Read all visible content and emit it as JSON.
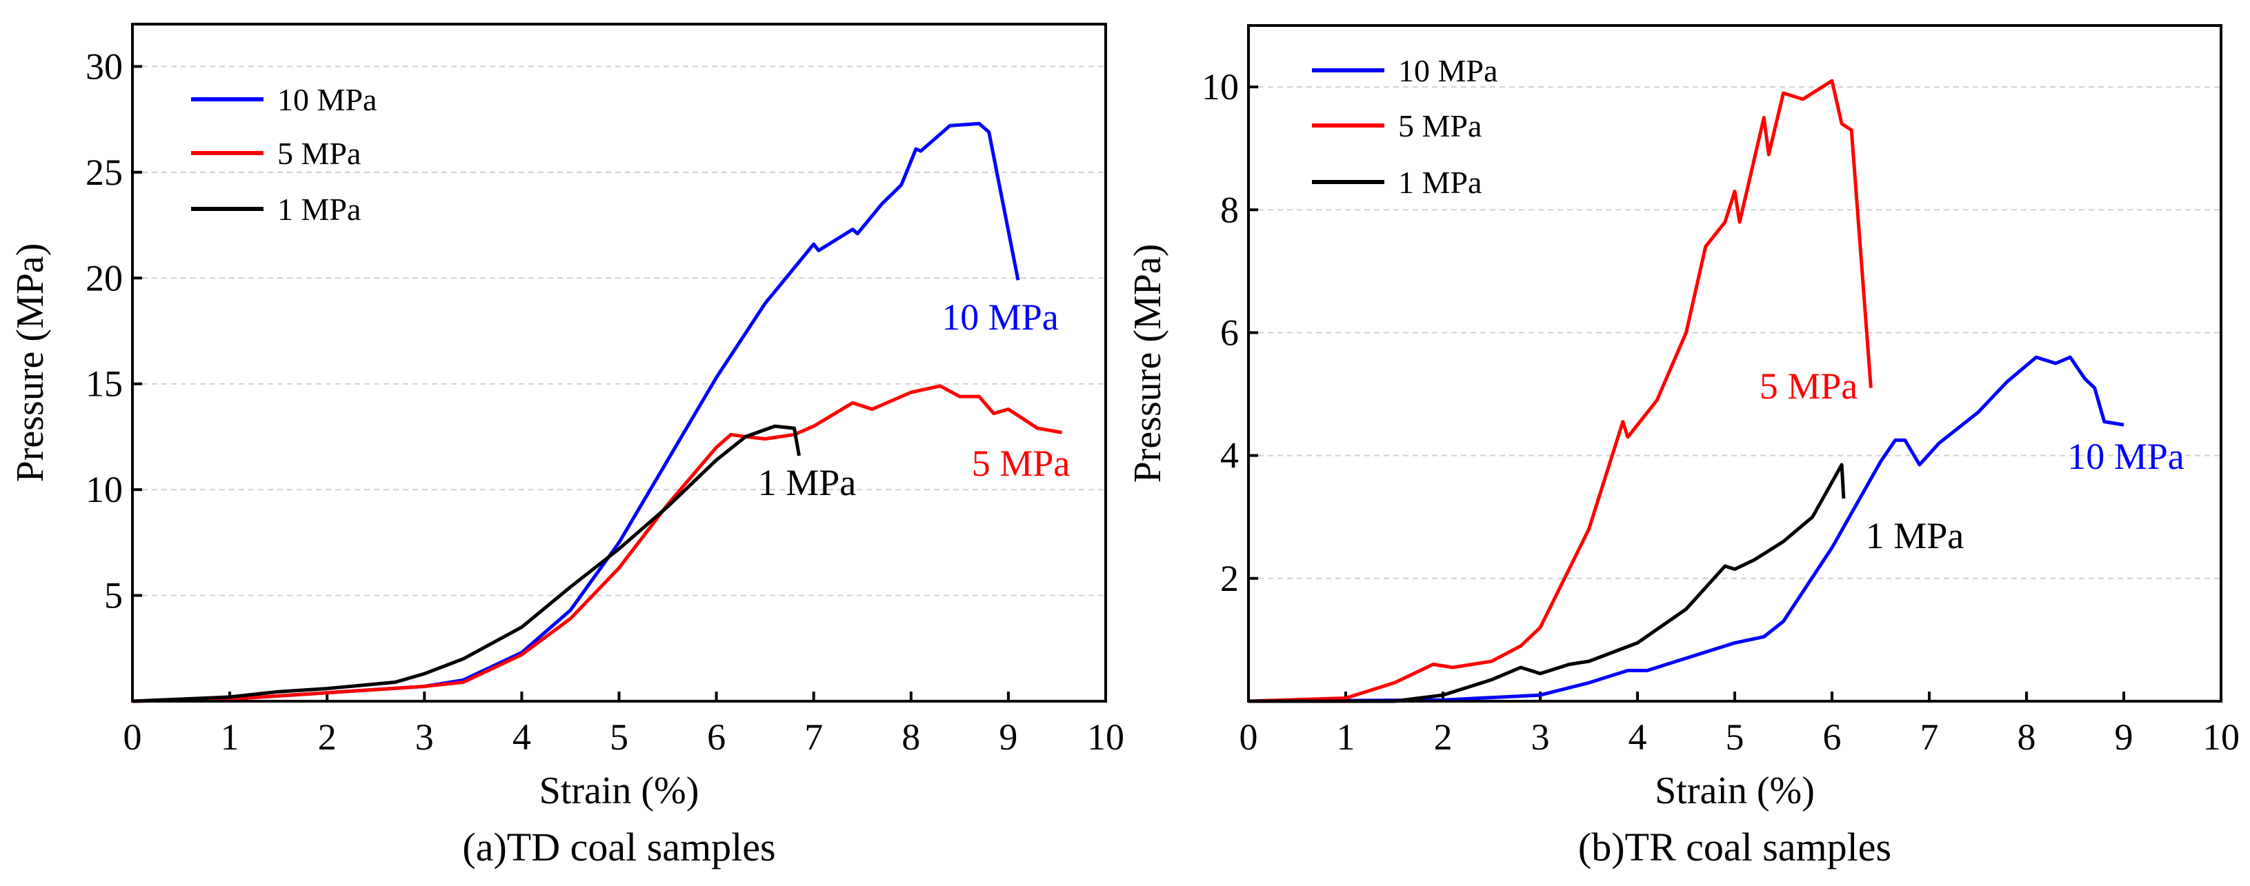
{
  "chart_data": [
    {
      "type": "line",
      "caption": "(a)TD coal samples",
      "xlabel": "Strain (%)",
      "ylabel": "Pressure (MPa)",
      "xlim": [
        0,
        10
      ],
      "ylim": [
        0,
        32
      ],
      "xticks": [
        "0",
        "1",
        "2",
        "3",
        "4",
        "5",
        "6",
        "7",
        "8",
        "9",
        "10"
      ],
      "yticks": [
        "5",
        "10",
        "15",
        "20",
        "25",
        "30"
      ],
      "grid": "horizontal dashed",
      "legend_position": "top-left",
      "series": [
        {
          "name": "10 MPa",
          "color": "#0000ff",
          "label": "10 MPa",
          "points": [
            [
              0,
              0
            ],
            [
              1,
              0.1
            ],
            [
              2,
              0.4
            ],
            [
              3,
              0.7
            ],
            [
              3.4,
              1
            ],
            [
              4,
              2.3
            ],
            [
              4.5,
              4.3
            ],
            [
              5,
              7.5
            ],
            [
              5.5,
              11.4
            ],
            [
              6,
              15.3
            ],
            [
              6.5,
              18.8
            ],
            [
              7,
              21.6
            ],
            [
              7.05,
              21.3
            ],
            [
              7.4,
              22.3
            ],
            [
              7.45,
              22.1
            ],
            [
              7.7,
              23.5
            ],
            [
              7.9,
              24.4
            ],
            [
              8.05,
              26.1
            ],
            [
              8.1,
              26
            ],
            [
              8.4,
              27.2
            ],
            [
              8.7,
              27.3
            ],
            [
              8.8,
              26.9
            ],
            [
              9.1,
              19.9
            ]
          ]
        },
        {
          "name": "5 MPa",
          "color": "#ff0000",
          "label": "5 MPa",
          "points": [
            [
              0,
              0
            ],
            [
              1,
              0.1
            ],
            [
              2,
              0.4
            ],
            [
              3,
              0.7
            ],
            [
              3.4,
              0.9
            ],
            [
              4,
              2.2
            ],
            [
              4.5,
              3.9
            ],
            [
              5,
              6.3
            ],
            [
              5.5,
              9.3
            ],
            [
              6,
              12.0
            ],
            [
              6.15,
              12.6
            ],
            [
              6.3,
              12.5
            ],
            [
              6.5,
              12.4
            ],
            [
              6.8,
              12.6
            ],
            [
              7,
              13.0
            ],
            [
              7.4,
              14.1
            ],
            [
              7.6,
              13.8
            ],
            [
              8,
              14.6
            ],
            [
              8.3,
              14.9
            ],
            [
              8.5,
              14.4
            ],
            [
              8.7,
              14.4
            ],
            [
              8.85,
              13.6
            ],
            [
              9,
              13.8
            ],
            [
              9.3,
              12.9
            ],
            [
              9.55,
              12.7
            ]
          ]
        },
        {
          "name": "1 MPa",
          "color": "#000000",
          "label": "1 MPa",
          "points": [
            [
              0,
              0
            ],
            [
              1,
              0.2
            ],
            [
              1.5,
              0.45
            ],
            [
              2,
              0.6
            ],
            [
              2.7,
              0.9
            ],
            [
              3,
              1.3
            ],
            [
              3.4,
              2
            ],
            [
              4,
              3.5
            ],
            [
              4.5,
              5.4
            ],
            [
              5,
              7.2
            ],
            [
              5.5,
              9.2
            ],
            [
              6,
              11.4
            ],
            [
              6.3,
              12.5
            ],
            [
              6.6,
              13
            ],
            [
              6.8,
              12.9
            ],
            [
              6.85,
              11.6
            ]
          ]
        }
      ]
    },
    {
      "type": "line",
      "caption": "(b)TR coal samples",
      "xlabel": "Strain (%)",
      "ylabel": "Pressure (MPa)",
      "xlim": [
        0,
        10
      ],
      "ylim": [
        0,
        11
      ],
      "xticks": [
        "0",
        "1",
        "2",
        "3",
        "4",
        "5",
        "6",
        "7",
        "8",
        "9",
        "10"
      ],
      "yticks": [
        "2",
        "4",
        "6",
        "8",
        "10"
      ],
      "grid": "horizontal dashed",
      "legend_position": "top-left",
      "series": [
        {
          "name": "10 MPa",
          "color": "#0000ff",
          "label": "10 MPa",
          "points": [
            [
              0,
              0
            ],
            [
              2,
              0.02
            ],
            [
              3,
              0.1
            ],
            [
              3.5,
              0.3
            ],
            [
              3.9,
              0.5
            ],
            [
              4.1,
              0.5
            ],
            [
              4.3,
              0.6
            ],
            [
              4.5,
              0.7
            ],
            [
              5,
              0.95
            ],
            [
              5.3,
              1.05
            ],
            [
              5.5,
              1.3
            ],
            [
              6,
              2.5
            ],
            [
              6.5,
              3.9
            ],
            [
              6.65,
              4.25
            ],
            [
              6.75,
              4.25
            ],
            [
              6.9,
              3.85
            ],
            [
              7.1,
              4.2
            ],
            [
              7.5,
              4.7
            ],
            [
              7.8,
              5.2
            ],
            [
              8.1,
              5.6
            ],
            [
              8.3,
              5.5
            ],
            [
              8.45,
              5.6
            ],
            [
              8.6,
              5.25
            ],
            [
              8.7,
              5.1
            ],
            [
              8.8,
              4.55
            ],
            [
              9,
              4.5
            ]
          ]
        },
        {
          "name": "5 MPa",
          "color": "#ff0000",
          "label": "5 MPa",
          "points": [
            [
              0,
              0
            ],
            [
              1,
              0.05
            ],
            [
              1.5,
              0.3
            ],
            [
              1.9,
              0.6
            ],
            [
              2.1,
              0.55
            ],
            [
              2.5,
              0.65
            ],
            [
              2.8,
              0.9
            ],
            [
              3,
              1.2
            ],
            [
              3.5,
              2.8
            ],
            [
              3.85,
              4.55
            ],
            [
              3.9,
              4.3
            ],
            [
              4.2,
              4.9
            ],
            [
              4.5,
              6
            ],
            [
              4.7,
              7.4
            ],
            [
              4.9,
              7.8
            ],
            [
              5,
              8.3
            ],
            [
              5.05,
              7.8
            ],
            [
              5.3,
              9.5
            ],
            [
              5.35,
              8.9
            ],
            [
              5.5,
              9.9
            ],
            [
              5.7,
              9.8
            ],
            [
              6,
              10.1
            ],
            [
              6.1,
              9.4
            ],
            [
              6.2,
              9.3
            ],
            [
              6.4,
              5.1
            ]
          ]
        },
        {
          "name": "1 MPa",
          "color": "#000000",
          "label": "1 MPa",
          "points": [
            [
              0,
              0
            ],
            [
              1.5,
              0
            ],
            [
              2,
              0.1
            ],
            [
              2.5,
              0.35
            ],
            [
              2.8,
              0.55
            ],
            [
              3,
              0.45
            ],
            [
              3.3,
              0.6
            ],
            [
              3.5,
              0.65
            ],
            [
              4,
              0.95
            ],
            [
              4.5,
              1.5
            ],
            [
              4.9,
              2.2
            ],
            [
              5,
              2.15
            ],
            [
              5.2,
              2.3
            ],
            [
              5.5,
              2.6
            ],
            [
              5.8,
              3.0
            ],
            [
              6.1,
              3.85
            ],
            [
              6.12,
              3.3
            ]
          ]
        }
      ]
    }
  ]
}
